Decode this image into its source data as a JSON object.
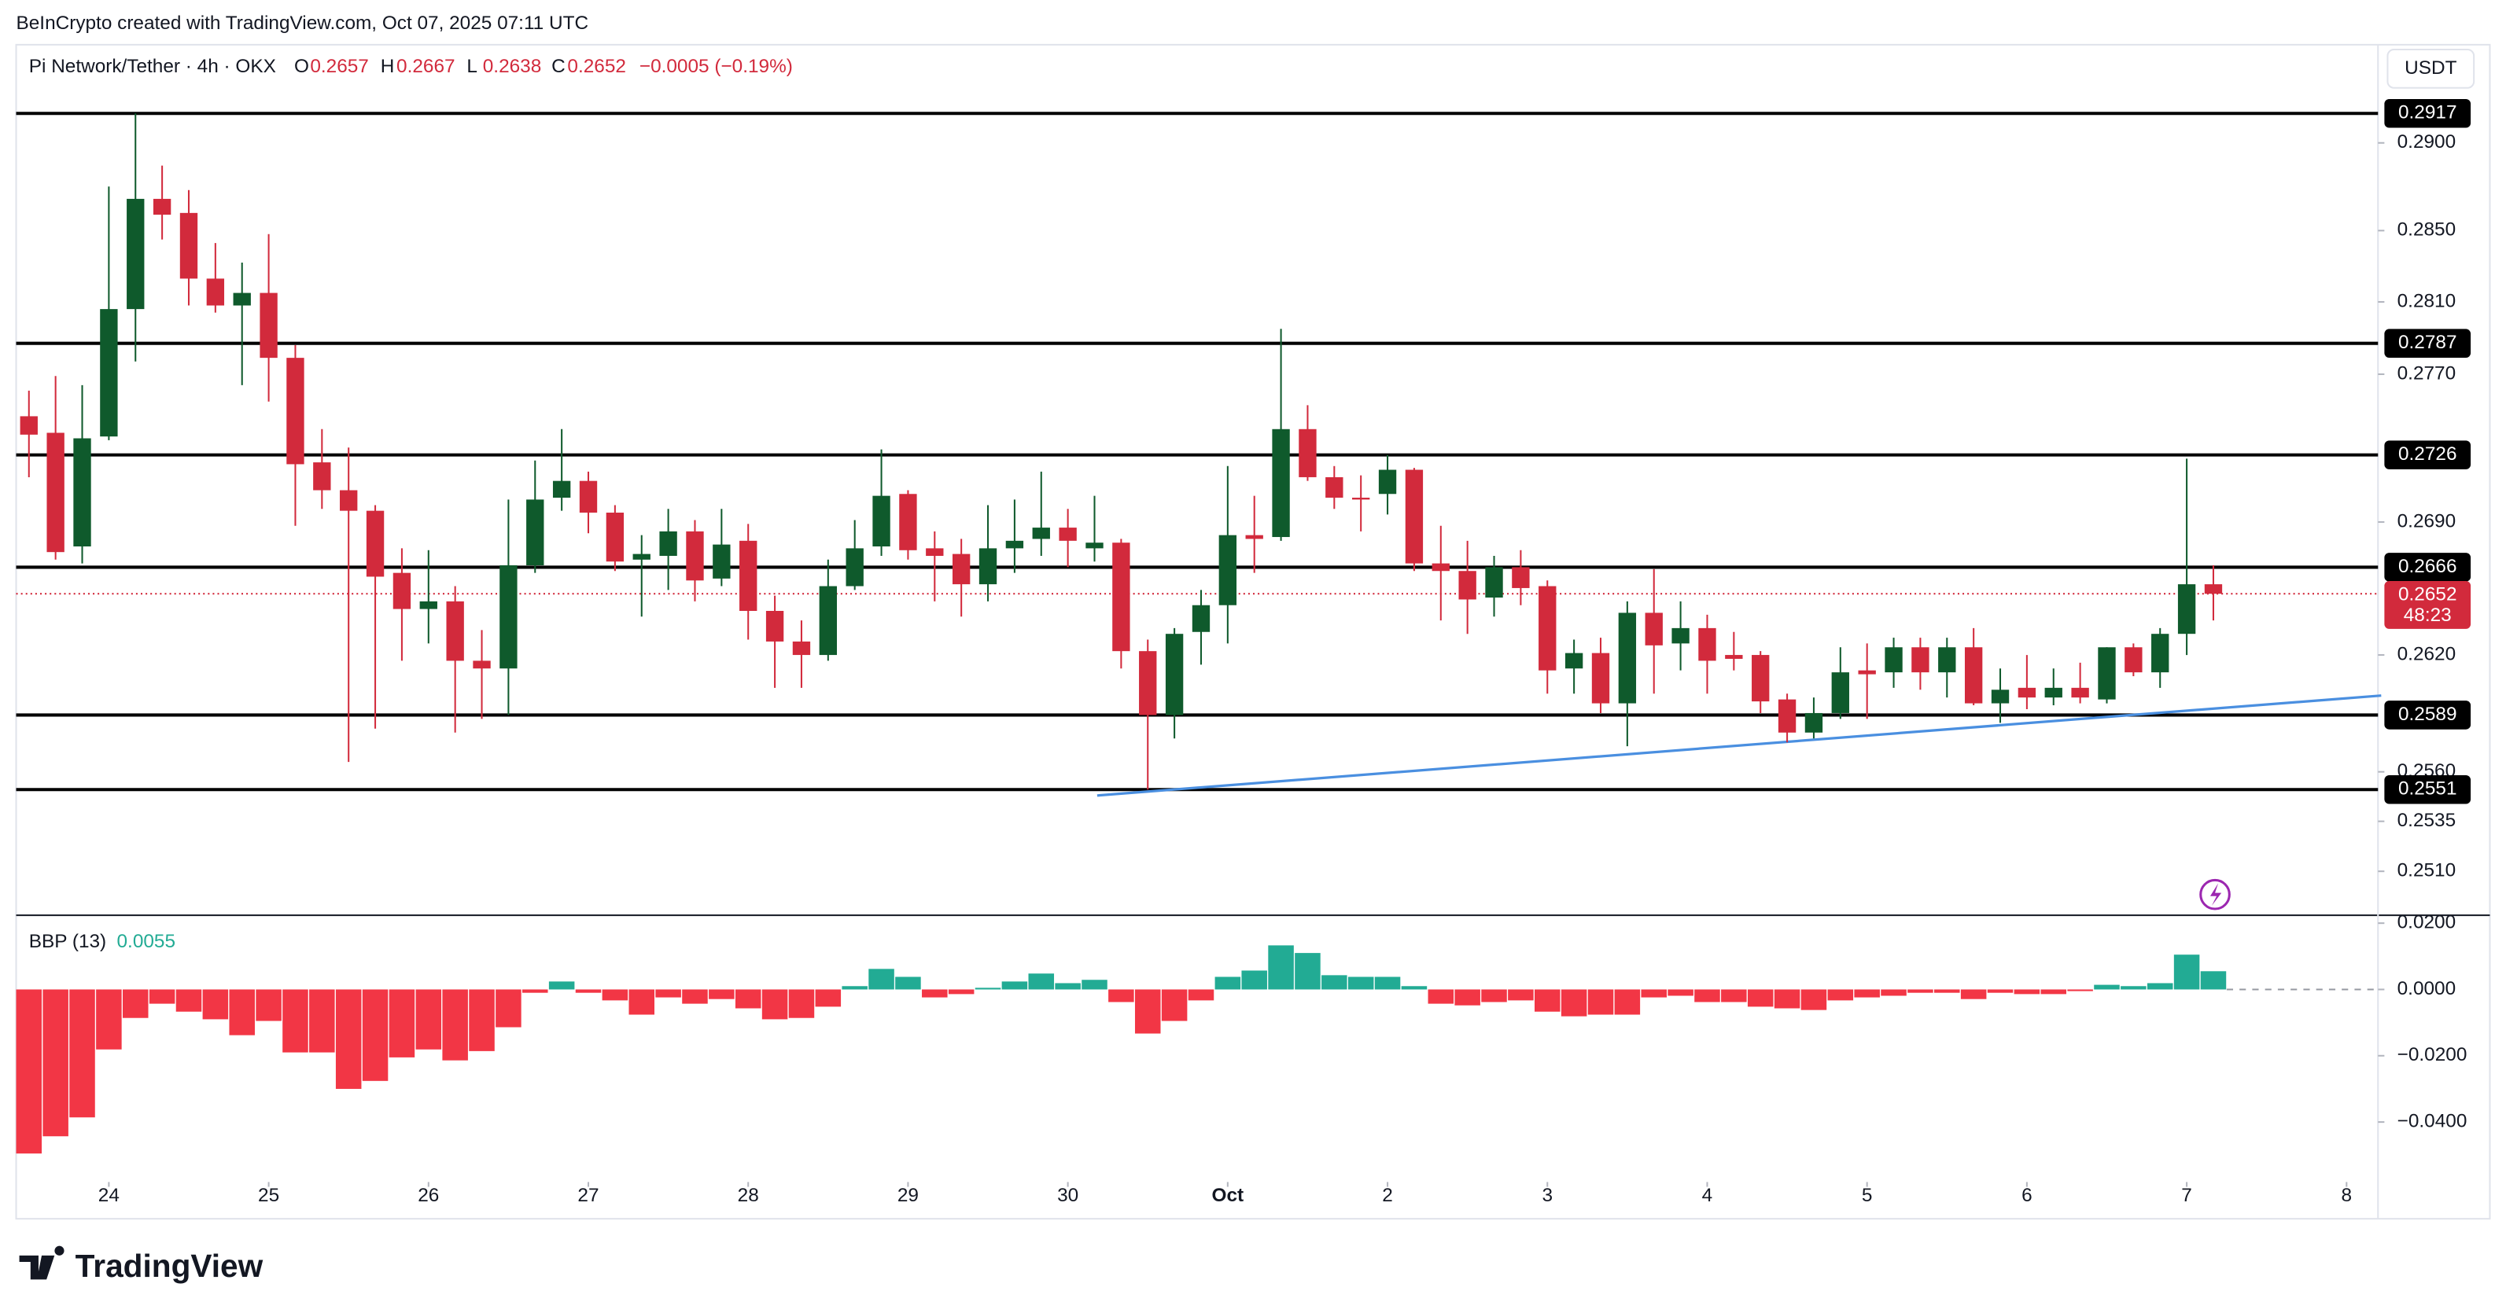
{
  "chart_data": {
    "type": "candlestick",
    "credit": "BeInCrypto created with TradingView.com, Oct 07, 2025 07:11 UTC",
    "title": "Pi Network/Tether · 4h · OKX",
    "ohlc_letters": [
      "O",
      "H",
      "L",
      "C"
    ],
    "change": "−0.0005 (−0.19%)",
    "axis_unit": "USDT",
    "countdown": "48:23",
    "brand": "TradingView",
    "log": true,
    "ylim": [
      0.2489,
      0.2957
    ],
    "yticks": [
      {
        "value": 0.29,
        "label": "0.2900"
      },
      {
        "value": 0.285,
        "label": "0.2850"
      },
      {
        "value": 0.281,
        "label": "0.2810"
      },
      {
        "value": 0.277,
        "label": "0.2770"
      },
      {
        "value": 0.269,
        "label": "0.2690"
      },
      {
        "value": 0.262,
        "label": "0.2620"
      },
      {
        "value": 0.256,
        "label": "0.2560"
      },
      0.2535,
      {
        "value": 0.251,
        "label": "0.2510"
      }
    ],
    "xlim": [
      -0.48,
      88.18
    ],
    "xticks": [
      {
        "value": 3,
        "label": "24"
      },
      {
        "value": 9,
        "label": "25"
      },
      {
        "value": 15,
        "label": "26"
      },
      {
        "value": 21,
        "label": "27"
      },
      {
        "value": 27,
        "label": "28"
      },
      {
        "value": 33,
        "label": "29"
      },
      {
        "value": 39,
        "label": "30"
      },
      {
        "value": 45,
        "label": "Oct"
      },
      {
        "value": 51,
        "label": "2"
      },
      {
        "value": 57,
        "label": "3"
      },
      {
        "value": 63,
        "label": "4"
      },
      {
        "value": 69,
        "label": "5"
      },
      {
        "value": 75,
        "label": "6"
      },
      {
        "value": 81,
        "label": "7"
      },
      {
        "value": 87,
        "label": "8"
      }
    ],
    "up_color": "#0f5a2c",
    "down_color": "#d22a3c",
    "levels": [
      0.2917,
      0.2787,
      0.2726,
      0.2666,
      0.2589,
      0.2551
    ],
    "level_color": "#000000",
    "trendline": {
      "color": "#4a8fe0",
      "x": [
        40.1,
        88.3
      ],
      "y": [
        0.2548,
        0.2599
      ]
    },
    "candles": {
      "open": [
        0.2747,
        0.2738,
        0.2677,
        0.2736,
        0.2806,
        0.2868,
        0.286,
        0.2823,
        0.2808,
        0.2815,
        0.2779,
        0.2722,
        0.2707,
        0.2696,
        0.2663,
        0.2644,
        0.2648,
        0.2617,
        0.2613,
        0.2667,
        0.2703,
        0.2712,
        0.2695,
        0.267,
        0.2672,
        0.2685,
        0.266,
        0.268,
        0.2643,
        0.2627,
        0.262,
        0.2656,
        0.2677,
        0.2705,
        0.2676,
        0.2673,
        0.2657,
        0.2676,
        0.2681,
        0.2687,
        0.2676,
        0.2679,
        0.2622,
        0.2589,
        0.2632,
        0.2646,
        0.2683,
        0.2682,
        0.274,
        0.2714,
        0.2703,
        0.2705,
        0.2718,
        0.2668,
        0.2664,
        0.265,
        0.2666,
        0.2656,
        0.2613,
        0.2621,
        0.2595,
        0.2642,
        0.2626,
        0.2634,
        0.262,
        0.262,
        0.2597,
        0.258,
        0.259,
        0.2612,
        0.2611,
        0.2624,
        0.2611,
        0.2624,
        0.2595,
        0.2603,
        0.2598,
        0.2603,
        0.2597,
        0.2624,
        0.2611,
        0.2631,
        0.2657
      ],
      "high": [
        0.2761,
        0.2769,
        0.2764,
        0.2875,
        0.2917,
        0.2887,
        0.2873,
        0.2843,
        0.2832,
        0.2848,
        0.2786,
        0.274,
        0.273,
        0.2699,
        0.2676,
        0.2675,
        0.2656,
        0.2633,
        0.2702,
        0.2723,
        0.274,
        0.2717,
        0.2699,
        0.2683,
        0.2697,
        0.2691,
        0.2697,
        0.2689,
        0.2651,
        0.2638,
        0.267,
        0.2691,
        0.2729,
        0.2707,
        0.2685,
        0.2681,
        0.2699,
        0.2702,
        0.2717,
        0.2697,
        0.2704,
        0.2681,
        0.2628,
        0.2634,
        0.2654,
        0.272,
        0.2704,
        0.2795,
        0.2753,
        0.272,
        0.2715,
        0.2726,
        0.2719,
        0.2688,
        0.268,
        0.2672,
        0.2675,
        0.2659,
        0.2628,
        0.2629,
        0.2648,
        0.2665,
        0.2648,
        0.2641,
        0.2632,
        0.2622,
        0.26,
        0.2598,
        0.2624,
        0.2626,
        0.2629,
        0.2629,
        0.2629,
        0.2634,
        0.2613,
        0.262,
        0.2613,
        0.2616,
        0.2624,
        0.2626,
        0.2634,
        0.2724,
        0.2667
      ],
      "low": [
        0.2714,
        0.267,
        0.2668,
        0.2734,
        0.2777,
        0.2845,
        0.2808,
        0.2804,
        0.2764,
        0.2755,
        0.2688,
        0.2697,
        0.2565,
        0.2582,
        0.2617,
        0.2626,
        0.258,
        0.2587,
        0.2589,
        0.2663,
        0.2696,
        0.2684,
        0.2664,
        0.264,
        0.2654,
        0.2648,
        0.2656,
        0.2628,
        0.2603,
        0.2603,
        0.2617,
        0.2654,
        0.2672,
        0.267,
        0.2648,
        0.264,
        0.2648,
        0.2663,
        0.2672,
        0.2666,
        0.2669,
        0.2613,
        0.2551,
        0.2577,
        0.2615,
        0.2626,
        0.2663,
        0.268,
        0.2712,
        0.2697,
        0.2685,
        0.2694,
        0.2664,
        0.2638,
        0.2631,
        0.264,
        0.2646,
        0.26,
        0.26,
        0.259,
        0.2573,
        0.26,
        0.2612,
        0.26,
        0.2612,
        0.259,
        0.2575,
        0.2577,
        0.2587,
        0.2587,
        0.2603,
        0.2602,
        0.2598,
        0.2594,
        0.2585,
        0.2592,
        0.2594,
        0.2595,
        0.2595,
        0.2609,
        0.2603,
        0.262,
        0.2638
      ],
      "close": [
        0.2737,
        0.2674,
        0.2735,
        0.2806,
        0.2868,
        0.2859,
        0.2823,
        0.2808,
        0.2815,
        0.2779,
        0.2721,
        0.2707,
        0.2696,
        0.2661,
        0.2644,
        0.2648,
        0.2617,
        0.2613,
        0.2667,
        0.2702,
        0.2712,
        0.2695,
        0.2669,
        0.2673,
        0.2685,
        0.2659,
        0.2678,
        0.2643,
        0.2627,
        0.262,
        0.2656,
        0.2676,
        0.2704,
        0.2675,
        0.2672,
        0.2657,
        0.2676,
        0.268,
        0.2687,
        0.268,
        0.2679,
        0.2622,
        0.2589,
        0.2631,
        0.2646,
        0.2683,
        0.2681,
        0.274,
        0.2714,
        0.2703,
        0.2702,
        0.2718,
        0.2668,
        0.2664,
        0.2649,
        0.2666,
        0.2655,
        0.2612,
        0.2621,
        0.2595,
        0.2642,
        0.2625,
        0.2634,
        0.2617,
        0.2618,
        0.2596,
        0.258,
        0.259,
        0.2611,
        0.261,
        0.2624,
        0.2611,
        0.2624,
        0.2595,
        0.2602,
        0.2598,
        0.2603,
        0.2598,
        0.2624,
        0.2611,
        0.2631,
        0.2657,
        0.2652
      ]
    },
    "indicator": {
      "type": "bar",
      "name": "BBP (13)",
      "ylim": [
        -0.0581,
        0.0219
      ],
      "yticks": [
        {
          "value": 0.02,
          "label": "0.0200"
        },
        {
          "value": 0,
          "label": "0.0000"
        },
        {
          "value": -0.02,
          "label": "−0.0200"
        },
        {
          "value": -0.04,
          "label": "−0.0400"
        }
      ],
      "up_color": "#22ab94",
      "down_color": "#f23645",
      "values": [
        -0.0495,
        -0.0443,
        -0.0386,
        -0.0181,
        -0.0086,
        -0.0043,
        -0.0067,
        -0.009,
        -0.0138,
        -0.0095,
        -0.019,
        -0.019,
        -0.03,
        -0.0276,
        -0.0205,
        -0.0181,
        -0.0214,
        -0.0186,
        -0.0114,
        -0.001,
        0.0024,
        -0.001,
        -0.0033,
        -0.0076,
        -0.0024,
        -0.0043,
        -0.0029,
        -0.0057,
        -0.009,
        -0.0086,
        -0.0052,
        0.001,
        0.0062,
        0.0038,
        -0.0024,
        -0.0014,
        0.0005,
        0.0024,
        0.0048,
        0.0019,
        0.0029,
        -0.0038,
        -0.0133,
        -0.0095,
        -0.0033,
        0.0038,
        0.0057,
        0.0133,
        0.011,
        0.0043,
        0.0038,
        0.0038,
        0.001,
        -0.0043,
        -0.0048,
        -0.0038,
        -0.0033,
        -0.0067,
        -0.0081,
        -0.0076,
        -0.0076,
        -0.0024,
        -0.0019,
        -0.0038,
        -0.0038,
        -0.0052,
        -0.0057,
        -0.0062,
        -0.0033,
        -0.0024,
        -0.0019,
        -0.001,
        -0.001,
        -0.0029,
        -0.001,
        -0.0014,
        -0.0014,
        -0.0005,
        0.0014,
        0.001,
        0.0019,
        0.0105,
        0.0055
      ]
    }
  }
}
